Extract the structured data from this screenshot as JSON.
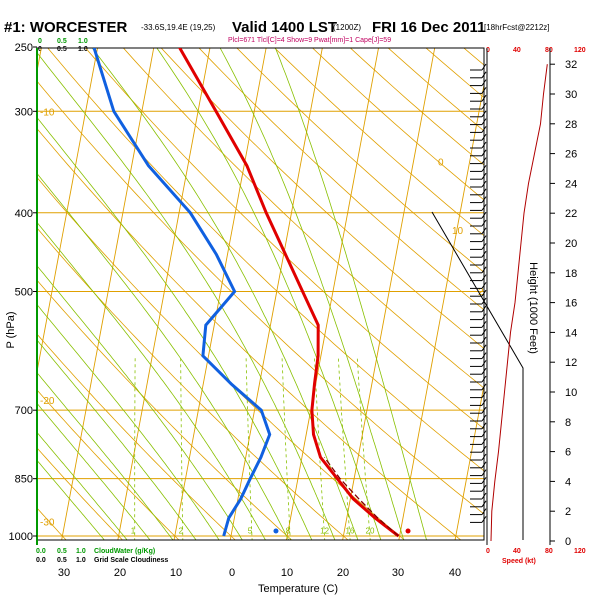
{
  "header": {
    "station": "#1: WORCESTER",
    "coords": "-33.6S,19.4E (19,25)",
    "valid": "Valid 1400 LST",
    "valid_z": "(1200Z)",
    "date": "FRI 16 Dec 2011",
    "fcst": "[18hrFcst@2212z]",
    "indices": "Plcl=671 Tlcl[C]=4 Show=9 Pwat[mm]=1 Cape[J]=59"
  },
  "cloud_scales": {
    "top_green": [
      "0",
      "0.5",
      "1.0"
    ],
    "top_black": [
      "0",
      "0.5",
      "1.0"
    ],
    "bottom_green": [
      "0.0",
      "0.5",
      "1.0",
      "CloudWater (g/Kg)"
    ],
    "bottom_black": [
      "0.0",
      "0.5",
      "1.0",
      "Grid Scale Cloudiness"
    ]
  },
  "speed_axis": {
    "top_ticks": [
      "0",
      "40",
      "80",
      "120"
    ],
    "bottom_ticks": [
      "0",
      "40",
      "80",
      "120"
    ],
    "label": "Speed (kt)"
  },
  "colors": {
    "temperature": "#e00000",
    "dewpoint": "#1060e0",
    "parcel": "#800000",
    "isotherm": "#e0a000",
    "dry_adiabat": "#e0a000",
    "moist_adiabat": "#88c000",
    "mixing_ratio": "#88c000",
    "height_line": "#b00000"
  },
  "chart_data": {
    "type": "line",
    "title": "#1: WORCESTER Valid 1400 LST FRI 16 Dec 2011",
    "xlabel": "Temperature (C)",
    "ylabel": "P (hPa)",
    "y2label": "Height (1000 Feet)",
    "pressure_ticks": [
      250,
      300,
      400,
      500,
      700,
      850,
      1000
    ],
    "temp_ticks": [
      -30,
      -20,
      -10,
      0,
      10,
      20,
      30,
      40
    ],
    "height_ticks": [
      0,
      2,
      4,
      6,
      8,
      10,
      12,
      14,
      16,
      18,
      20,
      22,
      24,
      26,
      28,
      30,
      32
    ],
    "dry_adiabat_labels": [
      0,
      10,
      20,
      30
    ],
    "isotherm_labels": [
      -10,
      -20,
      -30
    ],
    "mixing_ratio_labels": [
      1,
      2,
      5,
      8,
      12,
      16,
      20
    ],
    "series": [
      {
        "name": "Temperature",
        "points": [
          [
            1000,
            29.8
          ],
          [
            950,
            25.0
          ],
          [
            900,
            20.5
          ],
          [
            850,
            17.0
          ],
          [
            800,
            13.3
          ],
          [
            750,
            11.3
          ],
          [
            700,
            10.2
          ],
          [
            650,
            9.8
          ],
          [
            600,
            9.5
          ],
          [
            550,
            8.5
          ],
          [
            500,
            4.6
          ],
          [
            450,
            0.3
          ],
          [
            400,
            -4.5
          ],
          [
            350,
            -9.5
          ],
          [
            300,
            -16.8
          ],
          [
            250,
            -25.5
          ]
        ]
      },
      {
        "name": "Dewpoint",
        "points": [
          [
            1000,
            -1.3
          ],
          [
            950,
            -1.0
          ],
          [
            900,
            0.5
          ],
          [
            850,
            1.5
          ],
          [
            800,
            2.7
          ],
          [
            750,
            3.5
          ],
          [
            700,
            1.2
          ],
          [
            650,
            -5.0
          ],
          [
            600,
            -11.0
          ],
          [
            550,
            -11.5
          ],
          [
            500,
            -7.5
          ],
          [
            450,
            -12.0
          ],
          [
            400,
            -18.0
          ],
          [
            350,
            -27.0
          ],
          [
            300,
            -35.0
          ],
          [
            250,
            -40.7
          ]
        ]
      },
      {
        "name": "Parcel",
        "points": [
          [
            1000,
            29.8
          ],
          [
            950,
            25.5
          ],
          [
            900,
            21.5
          ],
          [
            850,
            17.5
          ],
          [
            800,
            14.0
          ]
        ]
      }
    ],
    "surface_markers": [
      {
        "name": "Surface temperature",
        "p": 1000,
        "t": 31.5
      },
      {
        "name": "Surface dewpoint",
        "p": 1000,
        "t": 8.0
      }
    ],
    "wind_speed_profile_kt": [
      [
        0,
        0
      ],
      [
        2,
        1
      ],
      [
        4,
        5
      ],
      [
        6,
        10
      ],
      [
        8,
        14
      ],
      [
        10,
        18
      ],
      [
        12,
        22
      ],
      [
        14,
        26
      ],
      [
        16,
        32
      ],
      [
        18,
        36
      ],
      [
        20,
        40
      ],
      [
        22,
        44
      ],
      [
        24,
        50
      ],
      [
        26,
        58
      ],
      [
        28,
        66
      ],
      [
        30,
        70
      ],
      [
        32,
        75
      ]
    ]
  }
}
